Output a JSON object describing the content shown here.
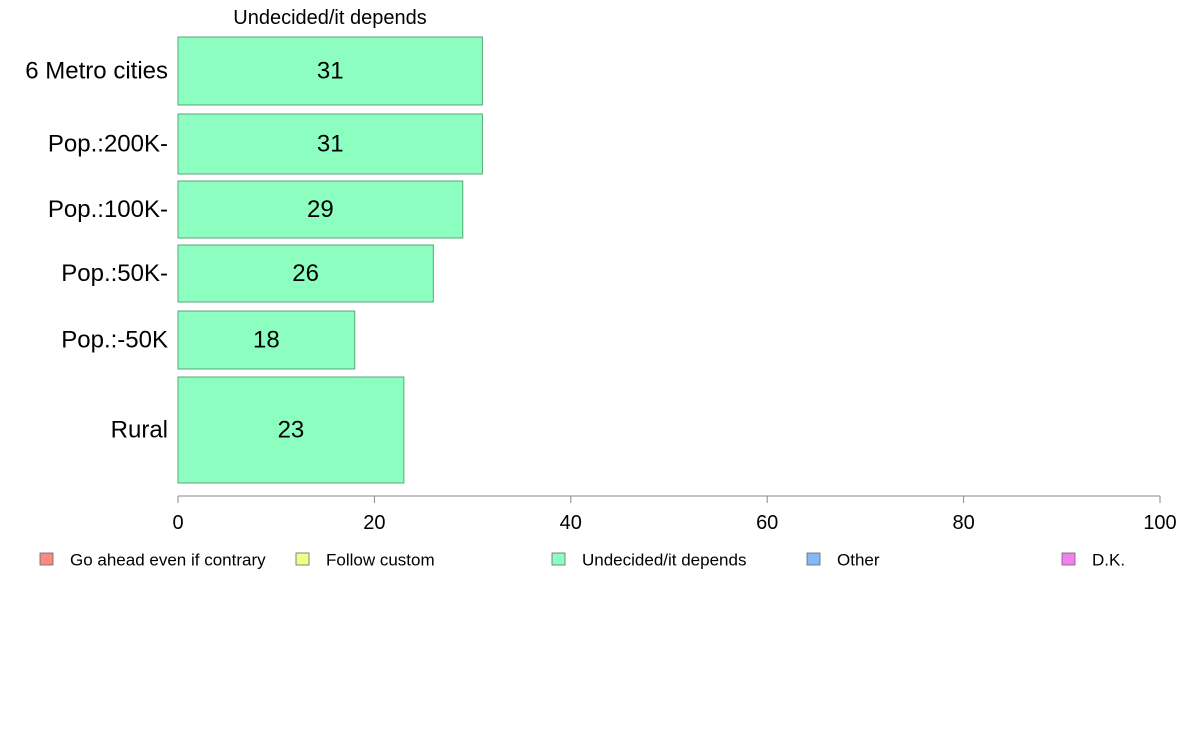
{
  "chart_data": {
    "type": "bar",
    "orientation": "horizontal",
    "title": "Undecided/it depends",
    "categories": [
      "6 Metro cities",
      "Pop.:200K-",
      "Pop.:100K-",
      "Pop.:50K-",
      "Pop.:-50K",
      "Rural"
    ],
    "series": [
      {
        "name": "Undecided/it depends",
        "values": [
          31,
          31,
          29,
          26,
          18,
          23
        ],
        "color": "#8cffc0"
      }
    ],
    "value_labels": [
      "31",
      "31",
      "29",
      "26",
      "18",
      "23"
    ],
    "xlim": [
      0,
      100
    ],
    "xticks": [
      0,
      20,
      40,
      60,
      80,
      100
    ],
    "grid": false,
    "legend_position": "bottom",
    "legend": [
      {
        "label": "Go ahead even if contrary",
        "color": "#f88a86"
      },
      {
        "label": "Follow custom",
        "color": "#eeff8a"
      },
      {
        "label": "Undecided/it depends",
        "color": "#8cffc0"
      },
      {
        "label": "Other",
        "color": "#84b8f8"
      },
      {
        "label": "D.K.",
        "color": "#f480f0"
      }
    ]
  }
}
